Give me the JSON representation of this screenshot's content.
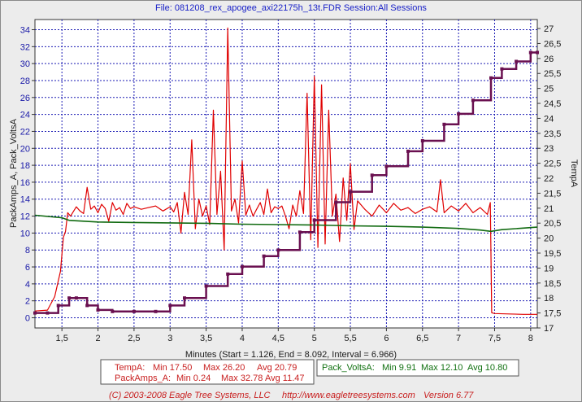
{
  "window": {
    "title": "File: 081208_rex_apogee_axi22175h_13t.FDR   Session:All Sessions"
  },
  "footer": {
    "copyright": "(C) 2003-2008 Eagle Tree Systems, LLC",
    "url": "http://www.eagletreesystems.com",
    "version": "Version 6.77"
  },
  "legend_summary": {
    "temp": {
      "name": "TempA:",
      "min": "Min 17.50",
      "max": "Max 26.20",
      "avg": "Avg 20.79"
    },
    "amps": {
      "name": "PackAmps_A:",
      "min": "Min 0.24",
      "max": "Max 32.78",
      "avg": "Avg 11.47"
    },
    "volts": {
      "name": "Pack_VoltsA:",
      "min": "Min 9.91",
      "max": "Max 12.10",
      "avg": "Avg 10.80"
    }
  },
  "colors": {
    "amps": "#e00000",
    "volts": "#106a10",
    "temp": "#6a1050",
    "grid": "#1b1bb4",
    "plot_bg": "#ffffff",
    "window_bg": "#ececec",
    "title": "#1a22c8"
  },
  "chart_data": {
    "type": "line",
    "xlabel": "Minutes (Start = 1.126,  End = 8.092,  Interval = 6.966)",
    "xlim": [
      1.126,
      8.092
    ],
    "x_ticks": [
      "1,5",
      "2",
      "2,5",
      "3",
      "3,5",
      "4",
      "4,5",
      "5",
      "5,5",
      "6",
      "6,5",
      "7",
      "7,5",
      "8"
    ],
    "y_left": {
      "label": "PackAmps_A, Pack_VoltsA",
      "lim": [
        -1.2,
        35.2
      ],
      "ticks": [
        "0",
        "2",
        "4",
        "6",
        "8",
        "10",
        "12",
        "14",
        "16",
        "18",
        "20",
        "22",
        "24",
        "26",
        "28",
        "30",
        "32",
        "34"
      ]
    },
    "y_right": {
      "label": "TempA",
      "lim": [
        17.0,
        27.3
      ],
      "ticks": [
        "17",
        "17,5",
        "18",
        "18,5",
        "19",
        "19,5",
        "20",
        "20,5",
        "21",
        "21,5",
        "22",
        "22,5",
        "23",
        "23,5",
        "24",
        "24,5",
        "25",
        "25,5",
        "26",
        "26,5",
        "27"
      ]
    },
    "grid": true,
    "series": [
      {
        "name": "PackAmps_A",
        "axis": "left",
        "x": [
          1.126,
          1.3,
          1.4,
          1.48,
          1.52,
          1.55,
          1.58,
          1.62,
          1.7,
          1.75,
          1.8,
          1.85,
          1.9,
          1.95,
          2.0,
          2.05,
          2.1,
          2.15,
          2.2,
          2.25,
          2.3,
          2.35,
          2.4,
          2.45,
          2.5,
          2.6,
          2.7,
          2.8,
          2.9,
          3.0,
          3.05,
          3.1,
          3.15,
          3.2,
          3.25,
          3.3,
          3.35,
          3.4,
          3.45,
          3.5,
          3.55,
          3.6,
          3.65,
          3.7,
          3.75,
          3.8,
          3.85,
          3.9,
          3.95,
          4.0,
          4.05,
          4.1,
          4.15,
          4.2,
          4.25,
          4.3,
          4.35,
          4.4,
          4.45,
          4.5,
          4.55,
          4.6,
          4.65,
          4.7,
          4.75,
          4.8,
          4.85,
          4.9,
          4.95,
          5.0,
          5.05,
          5.1,
          5.15,
          5.2,
          5.25,
          5.3,
          5.35,
          5.4,
          5.45,
          5.5,
          5.55,
          5.6,
          5.7,
          5.8,
          5.9,
          6.0,
          6.1,
          6.2,
          6.3,
          6.4,
          6.5,
          6.6,
          6.7,
          6.75,
          6.8,
          6.9,
          7.0,
          7.1,
          7.2,
          7.3,
          7.4,
          7.44,
          7.46,
          7.5,
          7.7,
          7.9,
          8.092
        ],
        "values": [
          0.8,
          0.9,
          2.5,
          5.5,
          9.5,
          10.2,
          12.4,
          12.0,
          13.1,
          12.6,
          12.3,
          15.4,
          12.8,
          13.2,
          12.4,
          13.4,
          12.9,
          11.4,
          13.6,
          12.7,
          13.0,
          12.2,
          13.5,
          12.9,
          13.1,
          12.8,
          13.0,
          13.2,
          12.6,
          13.1,
          12.5,
          13.6,
          10.0,
          14.8,
          12.2,
          21.0,
          10.5,
          14.0,
          12.0,
          13.2,
          11.0,
          24.5,
          12.2,
          17.3,
          8.0,
          34.2,
          12.6,
          14.0,
          11.2,
          18.5,
          12.1,
          13.3,
          12.0,
          12.8,
          13.6,
          12.2,
          15.2,
          12.4,
          13.1,
          12.9,
          13.2,
          12.0,
          10.5,
          13.3,
          12.0,
          15.0,
          12.3,
          26.5,
          9.2,
          28.5,
          8.3,
          27.5,
          8.7,
          24.5,
          12.0,
          14.6,
          9.0,
          16.5,
          11.5,
          18.2,
          10.4,
          13.8,
          12.8,
          12.0,
          13.3,
          12.4,
          13.5,
          12.7,
          13.0,
          12.3,
          12.8,
          13.1,
          12.5,
          16.3,
          12.4,
          13.2,
          12.6,
          13.5,
          12.4,
          13.0,
          12.2,
          13.6,
          0.6,
          0.5,
          0.45,
          0.4,
          0.4
        ]
      },
      {
        "name": "Pack_VoltsA",
        "axis": "left",
        "x": [
          1.126,
          1.5,
          1.6,
          2.0,
          2.5,
          3.0,
          3.5,
          4.0,
          4.5,
          5.0,
          5.5,
          6.0,
          6.5,
          7.0,
          7.3,
          7.45,
          7.6,
          8.092
        ],
        "values": [
          12.1,
          11.8,
          11.5,
          11.3,
          11.25,
          11.2,
          11.15,
          11.05,
          11.0,
          10.95,
          10.85,
          10.8,
          10.7,
          10.55,
          10.35,
          10.2,
          10.4,
          10.7
        ]
      },
      {
        "name": "TempA",
        "axis": "right",
        "x": [
          1.126,
          1.3,
          1.45,
          1.6,
          1.7,
          1.85,
          2.0,
          2.2,
          2.5,
          2.8,
          3.0,
          3.2,
          3.5,
          3.8,
          4.0,
          4.3,
          4.5,
          4.8,
          5.0,
          5.3,
          5.5,
          5.8,
          6.0,
          6.3,
          6.5,
          6.8,
          7.0,
          7.2,
          7.45,
          7.6,
          7.8,
          8.0,
          8.092
        ],
        "values": [
          17.5,
          17.5,
          17.75,
          18.0,
          18.0,
          17.75,
          17.6,
          17.55,
          17.55,
          17.55,
          17.75,
          18.0,
          18.4,
          18.8,
          19.05,
          19.4,
          19.6,
          20.2,
          20.6,
          21.2,
          21.55,
          22.1,
          22.4,
          22.9,
          23.25,
          23.8,
          24.15,
          24.6,
          25.35,
          25.65,
          25.9,
          26.2,
          26.2
        ]
      }
    ]
  }
}
